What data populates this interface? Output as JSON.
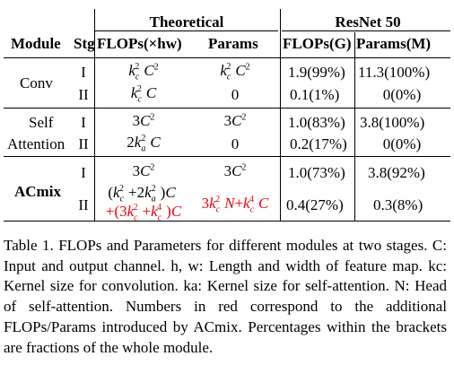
{
  "header": {
    "group_theoretical": "Theoretical",
    "group_resnet": "ResNet 50",
    "col_module": "Module",
    "col_stage": "Stg",
    "col_flops_theory": "FLOPs(×hw)",
    "col_params_theory": "Params",
    "col_flops_g": "FLOPs(G)",
    "col_params_m": "Params(M)"
  },
  "rows": {
    "conv": {
      "module": "Conv",
      "s1": {
        "stage": "I",
        "flops": "k_c^2 C^2",
        "params": "k_c^2 C^2",
        "flops_g": "1.9(99%)",
        "params_m": "11.3(100%)"
      },
      "s2": {
        "stage": "II",
        "flops": "k_c^2 C",
        "params": "0",
        "flops_g": "0.1(1%)",
        "params_m": "0(0%)"
      }
    },
    "sa": {
      "module_line1": "Self",
      "module_line2": "Attention",
      "s1": {
        "stage": "I",
        "flops": "3C^2",
        "params": "3C^2",
        "flops_g": "1.0(83%)",
        "params_m": "3.8(100%)"
      },
      "s2": {
        "stage": "II",
        "flops": "2k_a^2 C",
        "params": "0",
        "flops_g": "0.2(17%)",
        "params_m": "0(0%)"
      }
    },
    "acmix": {
      "module": "ACmix",
      "s1": {
        "stage": "I",
        "flops": "3C^2",
        "params": "3C^2",
        "flops_g": "1.0(73%)",
        "params_m": "3.8(92%)"
      },
      "s2": {
        "stage": "II",
        "flops": "(k_c^2+2k_a^2)C",
        "flops_extra": "+(3k_c^2+k_c^4)C",
        "params_extra": "3k_c^2 N+k_c^4 C",
        "flops_g": "0.4(27%)",
        "params_m": "0.3(8%)"
      }
    }
  },
  "caption": {
    "label": "Table 1.",
    "text": "FLOPs and Parameters for different modules at two stages. C: Input and output channel. h, w: Length and width of feature map. kc: Kernel size for convolution. ka: Kernel size for self-attention. N: Head of self-attention. Numbers in red correspond to the additional FLOPs/Params introduced by ACmix. Percentages within the brackets are fractions of the whole module."
  },
  "colors": {
    "red": "#e8000b",
    "text": "#000000"
  }
}
